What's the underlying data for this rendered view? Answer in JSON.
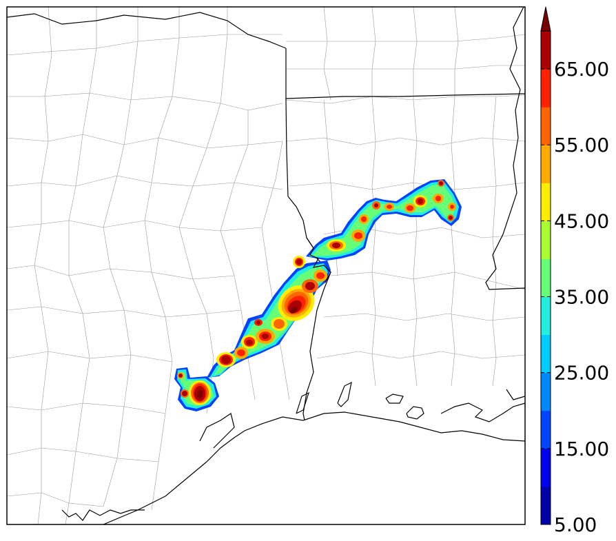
{
  "colorbar": {
    "labels": [
      "5.00",
      "15.00",
      "25.00",
      "35.00",
      "45.00",
      "55.00",
      "65.00"
    ],
    "min": 5,
    "max": 70,
    "step": 5,
    "extend": "max",
    "colors": [
      "#0000aa",
      "#0000ee",
      "#0044ff",
      "#0088ff",
      "#00ccff",
      "#22eedd",
      "#66ff77",
      "#aaff33",
      "#ffee00",
      "#ffaa00",
      "#ff6600",
      "#ff2200",
      "#aa0000",
      "#7a0000"
    ]
  },
  "map": {
    "border_color": "#000000",
    "county_line_color": "#999999"
  }
}
